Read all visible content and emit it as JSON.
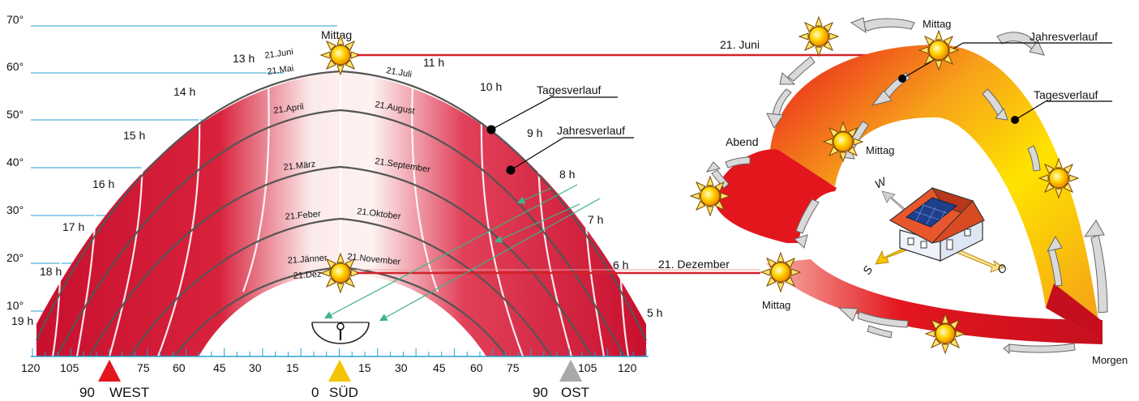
{
  "sun_path": {
    "elevation_labels": [
      "70°",
      "60°",
      "50°",
      "40°",
      "30°",
      "20°",
      "10°"
    ],
    "hour_labels_left": [
      "13 h",
      "14 h",
      "15 h",
      "16 h",
      "17 h",
      "18 h",
      "19 h"
    ],
    "hour_labels_right": [
      "11 h",
      "10 h",
      "9 h",
      "8 h",
      "7 h",
      "6 h",
      "5 h"
    ],
    "date_labels_left": [
      "21.Juni",
      "21.Mai",
      "21.April",
      "21.März",
      "21.Feber",
      "21.Jänner",
      "21.Dez"
    ],
    "date_labels_right": [
      "21.Juli",
      "21.August",
      "21.September",
      "21.Oktober",
      "21.November"
    ],
    "noon_label": "Mittag",
    "tagesverlauf": "Tagesverlauf",
    "jahresverlauf": "Jahresverlauf",
    "azimuth_ticks": [
      "120",
      "105",
      "75",
      "60",
      "45",
      "30",
      "15",
      "15",
      "30",
      "45",
      "60",
      "75",
      "105",
      "120"
    ],
    "azimuth_markers": [
      {
        "value": "90",
        "name": "WEST",
        "color": "#e3161e"
      },
      {
        "value": "0",
        "name": "SÜD",
        "color": "#f5c400"
      },
      {
        "value": "90",
        "name": "OST",
        "color": "#a8a8a8"
      }
    ]
  },
  "perspective": {
    "juni_label": "21. Juni",
    "dezember_label": "21. Dezember",
    "mittag_top": "Mittag",
    "mittag_mid": "Mittag",
    "mittag_bottom": "Mittag",
    "jahresverlauf": "Jahresverlauf",
    "tagesverlauf": "Tagesverlauf",
    "abend": "Abend",
    "morgen": "Morgen",
    "compass": {
      "w": "W",
      "s": "S",
      "o": "O"
    }
  },
  "colors": {
    "band_red": "#c8102e",
    "line_red": "#d2232a",
    "guide_blue": "#2a9fd6",
    "ray_green": "#3db38a",
    "band_yellow": "#ffe300"
  }
}
